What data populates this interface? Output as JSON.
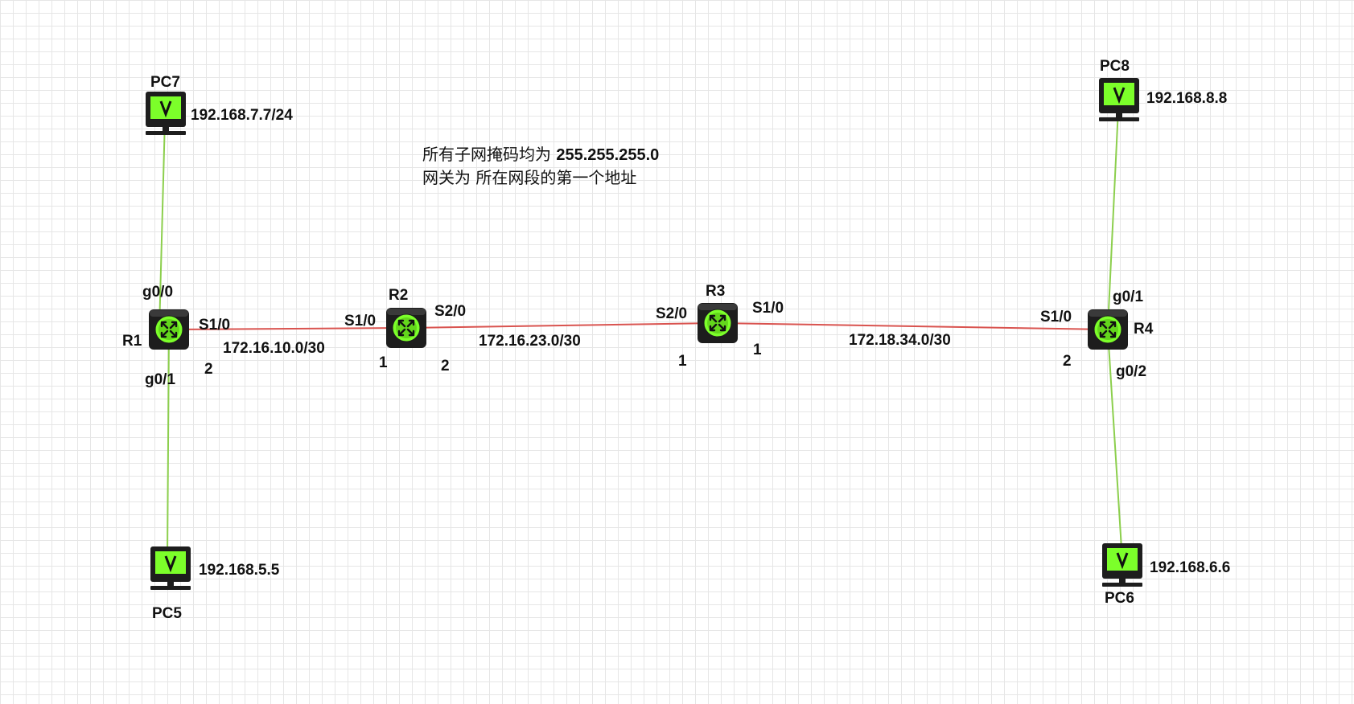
{
  "note": {
    "line1_text": "所有子网掩码均为 ",
    "line1_value": "255.255.255.0",
    "line2_text": "网关为 所在网段的第一个地址"
  },
  "routers": [
    {
      "id": "R1",
      "label": "R1"
    },
    {
      "id": "R2",
      "label": "R2"
    },
    {
      "id": "R3",
      "label": "R3"
    },
    {
      "id": "R4",
      "label": "R4"
    }
  ],
  "pcs": [
    {
      "id": "PC7",
      "label": "PC7",
      "ip": "192.168.7.7/24"
    },
    {
      "id": "PC5",
      "label": "PC5",
      "ip": "192.168.5.5"
    },
    {
      "id": "PC8",
      "label": "PC8",
      "ip": "192.168.8.8"
    },
    {
      "id": "PC6",
      "label": "PC6",
      "ip": "192.168.6.6"
    }
  ],
  "links": [
    {
      "from": "R1",
      "to": "R2",
      "kind": "serial",
      "network": "172.16.10.0/30",
      "from_port": "S1/0",
      "to_port": "S1/0",
      "from_host": "2",
      "to_host": "1"
    },
    {
      "from": "R2",
      "to": "R3",
      "kind": "serial",
      "network": "172.16.23.0/30",
      "from_port": "S2/0",
      "to_port": "S2/0",
      "from_host": "2",
      "to_host": "1"
    },
    {
      "from": "R3",
      "to": "R4",
      "kind": "serial",
      "network": "172.18.34.0/30",
      "from_port": "S1/0",
      "to_port": "S1/0",
      "from_host": "1",
      "to_host": "2"
    },
    {
      "from": "R1",
      "to": "PC7",
      "kind": "ethernet",
      "from_port": "g0/0"
    },
    {
      "from": "R1",
      "to": "PC5",
      "kind": "ethernet",
      "from_port": "g0/1"
    },
    {
      "from": "R4",
      "to": "PC8",
      "kind": "ethernet",
      "from_port": "g0/1"
    },
    {
      "from": "R4",
      "to": "PC6",
      "kind": "ethernet",
      "from_port": "g0/2"
    }
  ],
  "colors": {
    "serial_link": "#d9534f",
    "ethernet_link": "#8ccf4d",
    "device_green": "#7cff2a",
    "device_body": "#1d1d1d",
    "grid": "#e6e6e6"
  },
  "icons": {
    "router": "router-icon",
    "pc": "pc-monitor-icon"
  }
}
